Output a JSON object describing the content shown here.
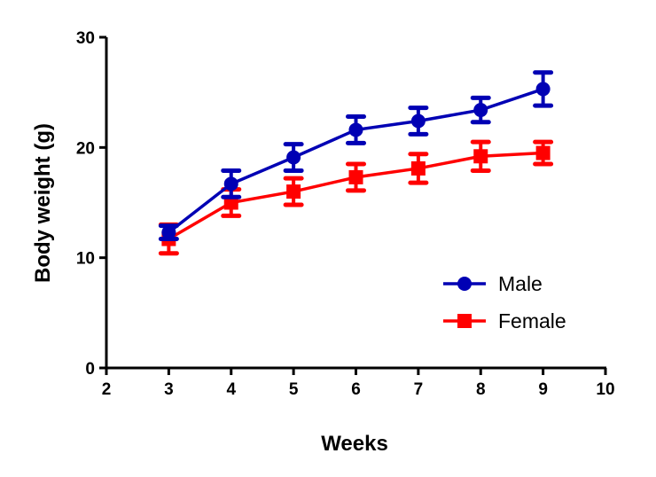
{
  "chart_data": {
    "type": "line",
    "title": "",
    "xlabel": "Weeks",
    "ylabel": "Body weight (g)",
    "xlim": [
      2,
      10
    ],
    "ylim": [
      0,
      30
    ],
    "xticks": [
      2,
      3,
      4,
      5,
      6,
      7,
      8,
      9,
      10
    ],
    "yticks": [
      0,
      10,
      20,
      30
    ],
    "grid": false,
    "legend_position": "bottom-right",
    "x": [
      3,
      4,
      5,
      6,
      7,
      8,
      9
    ],
    "series": [
      {
        "name": "Male",
        "color": "#0000b4",
        "marker": "circle",
        "values": [
          12.3,
          16.7,
          19.1,
          21.6,
          22.4,
          23.4,
          25.3
        ],
        "error": [
          0.6,
          1.2,
          1.2,
          1.2,
          1.2,
          1.1,
          1.5
        ]
      },
      {
        "name": "Female",
        "color": "#ff0000",
        "marker": "square",
        "values": [
          11.7,
          15.0,
          16.0,
          17.3,
          18.1,
          19.2,
          19.5
        ],
        "error": [
          1.3,
          1.2,
          1.2,
          1.2,
          1.3,
          1.3,
          1.0
        ]
      }
    ]
  }
}
